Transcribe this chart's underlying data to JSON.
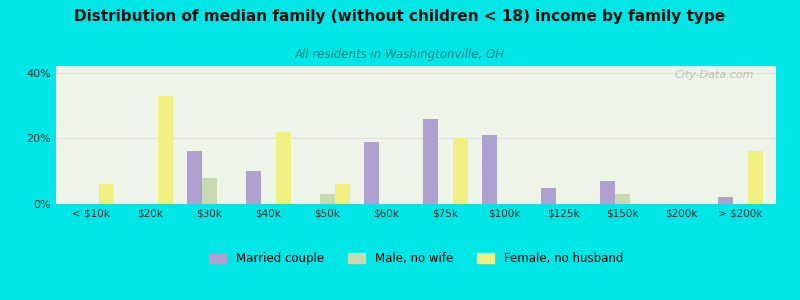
{
  "title": "Distribution of median family (without children < 18) income by family type",
  "subtitle": "All residents in Washingtonville, OH",
  "categories": [
    "< $10k",
    "$20k",
    "$30k",
    "$40k",
    "$50k",
    "$60k",
    "$75k",
    "$100k",
    "$125k",
    "$150k",
    "$200k",
    "> $200k"
  ],
  "married_couple": [
    0,
    0,
    16,
    10,
    0,
    19,
    26,
    21,
    5,
    7,
    0,
    2
  ],
  "male_no_wife": [
    0,
    0,
    8,
    0,
    3,
    0,
    0,
    0,
    0,
    3,
    0,
    0
  ],
  "female_no_husband": [
    6,
    33,
    0,
    22,
    6,
    0,
    20,
    0,
    0,
    0,
    0,
    16
  ],
  "married_couple_color": "#b0a0d0",
  "male_no_wife_color": "#c8d8b0",
  "female_no_husband_color": "#f0f080",
  "background_color": "#00e5e5",
  "plot_bg_color": "#eef5e8",
  "ylim": [
    0,
    42
  ],
  "yticks": [
    0,
    20,
    40
  ],
  "ytick_labels": [
    "0%",
    "20%",
    "40%"
  ],
  "bar_width": 0.25,
  "watermark": "City-Data.com",
  "legend_labels": [
    "Married couple",
    "Male, no wife",
    "Female, no husband"
  ]
}
